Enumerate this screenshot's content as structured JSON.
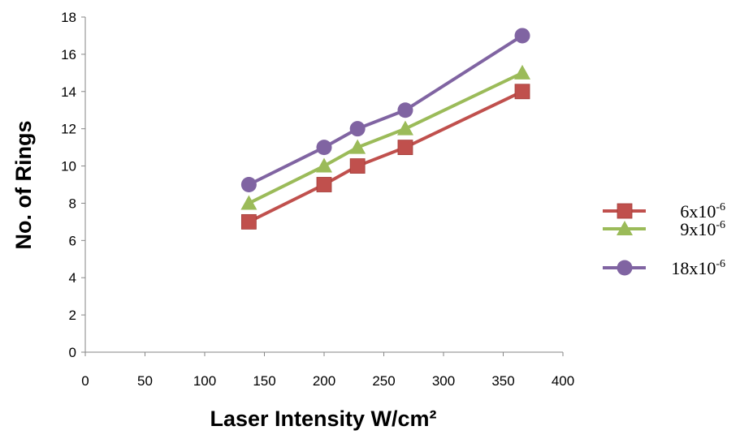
{
  "chart_data": {
    "type": "line",
    "xlabel": "Laser Intensity W/cm²",
    "ylabel": "No. of Rings",
    "xlim": [
      0,
      400
    ],
    "ylim": [
      0,
      18
    ],
    "xticks": [
      0,
      50,
      100,
      150,
      200,
      250,
      300,
      350,
      400
    ],
    "yticks": [
      0,
      2,
      4,
      6,
      8,
      10,
      12,
      14,
      16,
      18
    ],
    "grid": false,
    "legend_position": "right",
    "series": [
      {
        "name_base": "6x10",
        "name_exp": "-6",
        "color": "#c0504d",
        "marker": "square",
        "x": [
          137,
          200,
          228,
          268,
          366
        ],
        "y": [
          7,
          9,
          10,
          11,
          14
        ]
      },
      {
        "name_base": "9x10",
        "name_exp": "-6",
        "color": "#9bbb59",
        "marker": "triangle",
        "x": [
          137,
          200,
          228,
          268,
          366
        ],
        "y": [
          8,
          10,
          11,
          12,
          15
        ]
      },
      {
        "name_base": "18x10",
        "name_exp": "-6",
        "color": "#8064a2",
        "marker": "circle",
        "x": [
          137,
          200,
          228,
          268,
          366
        ],
        "y": [
          9,
          11,
          12,
          13,
          17
        ]
      }
    ]
  }
}
